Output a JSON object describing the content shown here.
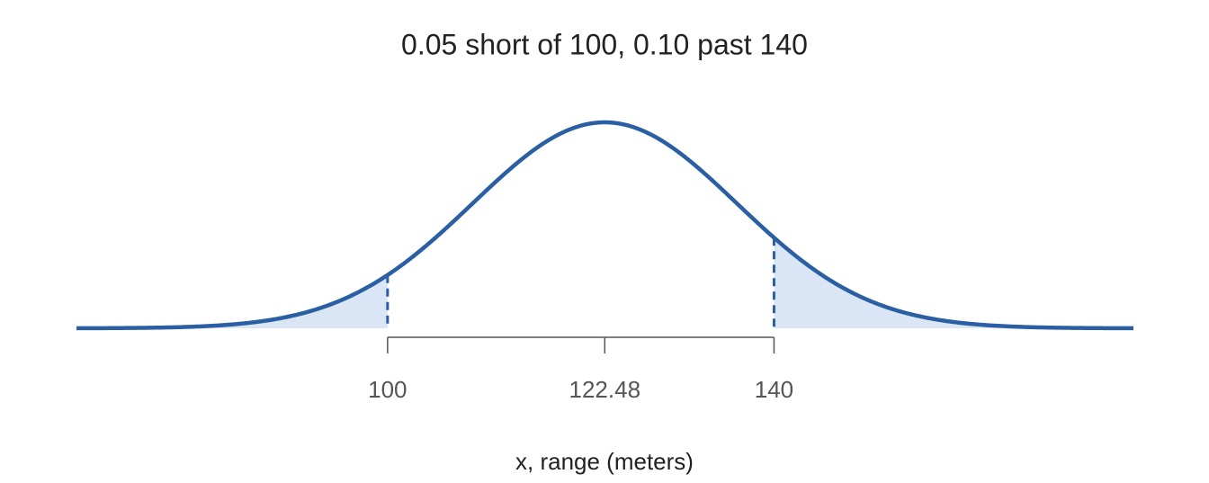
{
  "chart_data": {
    "type": "normal",
    "title": "0.05 short of 100, 0.10 past 140",
    "x_label": "x, range (meters)",
    "mean": 122.48,
    "sd": 13.67,
    "shade_below": 100,
    "shade_above": 140,
    "xlim": [
      67.8,
      177.2
    ],
    "xticks": [
      100,
      122.48,
      140
    ],
    "color": "#2a5fa4",
    "fill": "#dae6f5"
  }
}
